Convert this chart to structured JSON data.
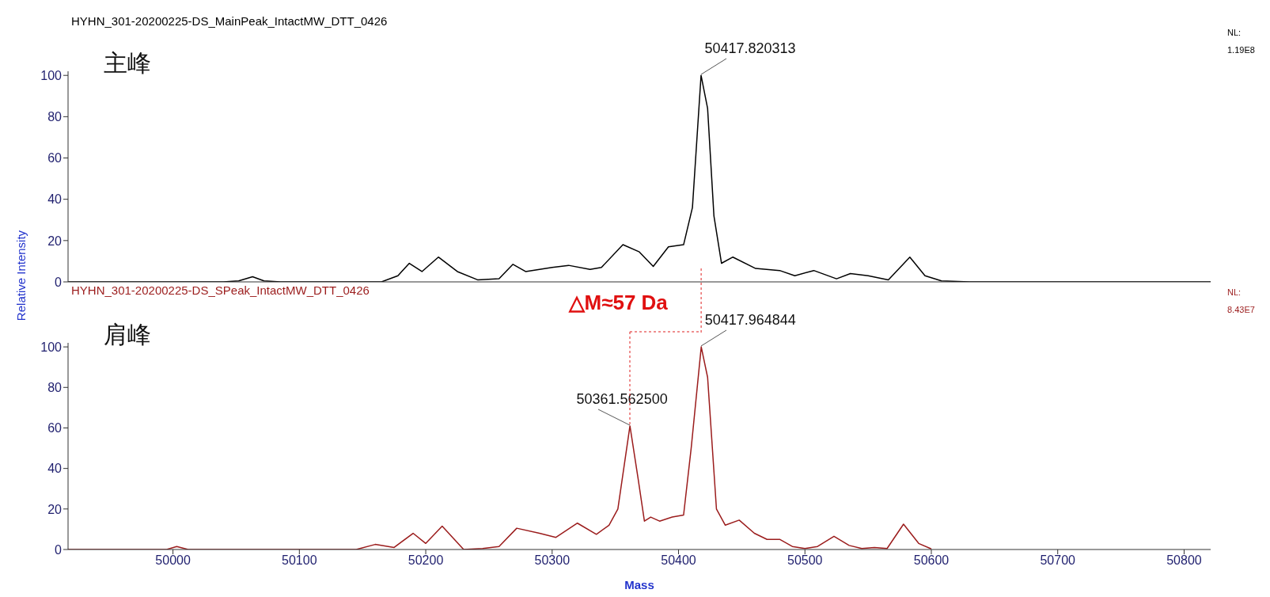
{
  "chart_data": [
    {
      "type": "line",
      "title": "HYHN_301-20200225-DS_MainPeak_IntactMW_DTT_0426",
      "tick_labels": "y",
      "xlim": [
        49917,
        50821
      ],
      "xticks": [
        50000,
        50100,
        50200,
        50300,
        50400,
        50500,
        50600,
        50700,
        50800
      ],
      "ylim": [
        0,
        102
      ],
      "yticks": [
        0,
        20,
        40,
        60,
        80,
        100
      ],
      "annotations": [
        "主峰",
        "NL: 1.19E8",
        {
          "text": "50417.820313",
          "x": 50417.820313,
          "y": 100
        }
      ],
      "series": [
        {
          "color": "#000000",
          "x": [
            49917,
            50040,
            50052,
            50063,
            50072,
            50085,
            50165,
            50178,
            50187,
            50197,
            50210,
            50225,
            50241,
            50258,
            50269,
            50279,
            50300,
            50313,
            50330,
            50339,
            50356,
            50369,
            50380,
            50392,
            50404,
            50411,
            50417.820313,
            50423,
            50428,
            50434,
            50443,
            50461,
            50480,
            50492,
            50507,
            50525,
            50536,
            50550,
            50566,
            50583,
            50595,
            50608,
            50630,
            50821
          ],
          "values": [
            0,
            0,
            0.5,
            2.5,
            0.5,
            0,
            0,
            3,
            9,
            5,
            12,
            5,
            1,
            1.5,
            8.5,
            5,
            7,
            8,
            6,
            7,
            18,
            14.5,
            7.5,
            17,
            18,
            36,
            100,
            84,
            32,
            9,
            12,
            6.5,
            5.5,
            3,
            5.5,
            1.5,
            4,
            3,
            1,
            12,
            3,
            0.5,
            0,
            0
          ]
        }
      ]
    },
    {
      "type": "line",
      "title": "HYHN_301-20200225-DS_SPeak_IntactMW_DTT_0426",
      "xlabel": "Mass",
      "ylabel": "Relative Intensity",
      "xlim": [
        49917,
        50821
      ],
      "xticks": [
        50000,
        50100,
        50200,
        50300,
        50400,
        50500,
        50600,
        50700,
        50800
      ],
      "ylim": [
        0,
        102
      ],
      "yticks": [
        0,
        20,
        40,
        60,
        80,
        100
      ],
      "annotations": [
        "肩峰",
        "NL: 8.43E7",
        "△M≈57 Da",
        {
          "text": "50361.562500",
          "x": 50361.5625,
          "y": 61
        },
        {
          "text": "50417.964844",
          "x": 50417.964844,
          "y": 100
        }
      ],
      "series": [
        {
          "color": "#9b1c1c",
          "x": [
            49917,
            49995,
            50003,
            50012,
            50145,
            50160,
            50175,
            50190,
            50200,
            50213,
            50230,
            50245,
            50258,
            50272,
            50290,
            50303,
            50320,
            50335,
            50345,
            50352,
            50361.5625,
            50368,
            50373,
            50378,
            50385,
            50395,
            50404,
            50410,
            50417.964844,
            50423,
            50430,
            50437,
            50448,
            50460,
            50470,
            50480,
            50490,
            50500,
            50510,
            50523,
            50535,
            50545,
            50555,
            50565,
            50578,
            50590,
            50600
          ],
          "values": [
            0,
            0,
            1.5,
            0,
            0,
            2.5,
            1,
            8,
            3,
            11.5,
            0,
            0.5,
            1.5,
            10.5,
            8,
            6,
            13,
            7.5,
            12,
            20,
            61,
            35,
            14,
            16,
            14,
            16,
            17,
            50,
            100,
            85,
            20,
            12,
            14.5,
            8,
            5,
            5,
            1.5,
            0.5,
            1.5,
            6.5,
            2,
            0.5,
            1,
            0.5,
            12.5,
            3,
            0.3
          ]
        }
      ]
    }
  ]
}
